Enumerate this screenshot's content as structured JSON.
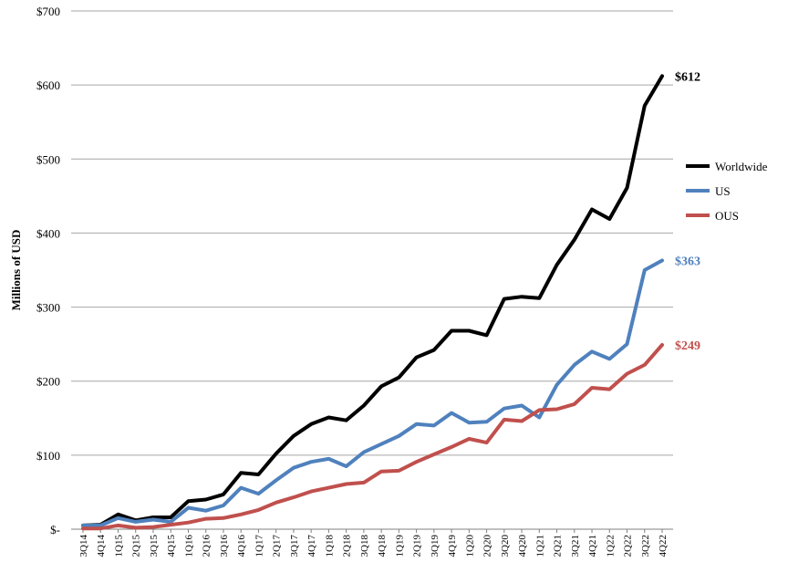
{
  "chart_data": {
    "type": "line",
    "ylabel": "Millions of USD",
    "ylim": [
      0,
      700
    ],
    "yticks": [
      0,
      100,
      200,
      300,
      400,
      500,
      600,
      700
    ],
    "ytick_labels": [
      "$-",
      "$100",
      "$200",
      "$300",
      "$400",
      "$500",
      "$600",
      "$700"
    ],
    "grid": "horizontal",
    "legend_position": "right",
    "categories": [
      "3Q14",
      "4Q14",
      "1Q15",
      "2Q15",
      "3Q15",
      "4Q15",
      "1Q16",
      "2Q16",
      "3Q16",
      "4Q16",
      "1Q17",
      "2Q17",
      "3Q17",
      "4Q17",
      "1Q18",
      "2Q18",
      "3Q18",
      "4Q18",
      "1Q19",
      "2Q19",
      "3Q19",
      "4Q19",
      "1Q20",
      "2Q20",
      "3Q20",
      "4Q20",
      "1Q21",
      "2Q21",
      "3Q21",
      "4Q21",
      "1Q22",
      "2Q22",
      "3Q22",
      "4Q22"
    ],
    "series": [
      {
        "name": "Worldwide",
        "color": "#000000",
        "end_label": "$612",
        "values": [
          5,
          6,
          20,
          12,
          16,
          16,
          38,
          40,
          47,
          76,
          74,
          102,
          126,
          142,
          151,
          147,
          167,
          193,
          205,
          232,
          242,
          268,
          268,
          262,
          311,
          314,
          312,
          357,
          391,
          432,
          419,
          461,
          572,
          612
        ]
      },
      {
        "name": "US",
        "color": "#4f81bd",
        "end_label": "$363",
        "values": [
          5,
          5,
          15,
          10,
          13,
          10,
          29,
          25,
          32,
          56,
          48,
          66,
          83,
          91,
          95,
          85,
          104,
          115,
          126,
          142,
          140,
          157,
          144,
          145,
          163,
          167,
          151,
          195,
          222,
          240,
          230,
          250,
          350,
          363
        ]
      },
      {
        "name": "OUS",
        "color": "#c0504d",
        "end_label": "$249",
        "values": [
          1,
          1,
          5,
          2,
          3,
          6,
          9,
          14,
          15,
          20,
          26,
          36,
          43,
          51,
          56,
          61,
          63,
          78,
          79,
          91,
          101,
          111,
          122,
          117,
          148,
          146,
          161,
          162,
          169,
          191,
          189,
          210,
          222,
          249
        ]
      }
    ]
  }
}
